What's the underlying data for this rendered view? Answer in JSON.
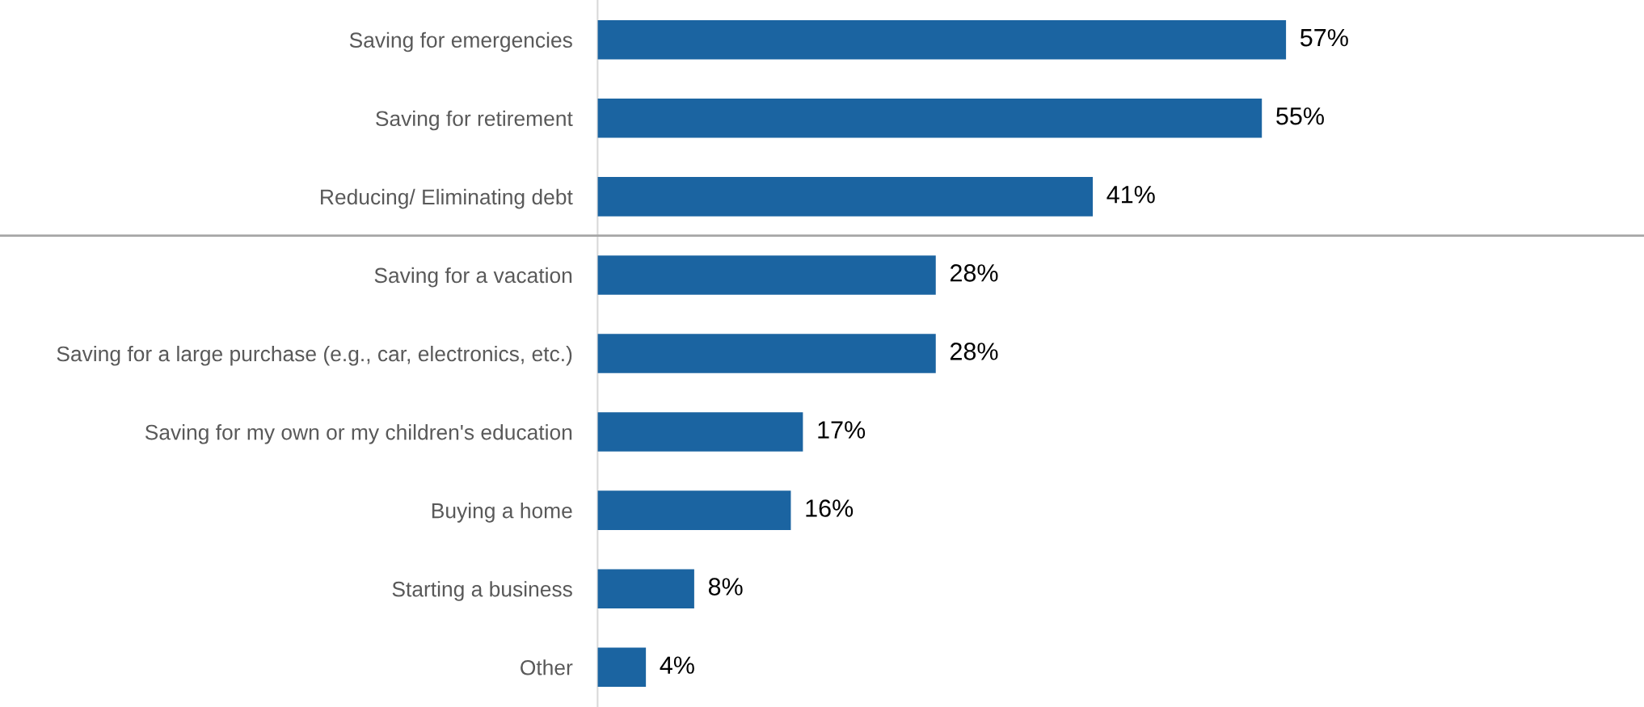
{
  "chart_data": {
    "type": "bar",
    "orientation": "horizontal",
    "categories": [
      "Saving for emergencies",
      "Saving for retirement",
      "Reducing/ Eliminating debt",
      "Saving for a vacation",
      "Saving for a large purchase (e.g., car, electronics, etc.)",
      "Saving for my own or my children's education",
      "Buying a home",
      "Starting a business",
      "Other"
    ],
    "values": [
      57,
      55,
      41,
      28,
      28,
      17,
      16,
      8,
      4
    ],
    "value_labels": [
      "57%",
      "55%",
      "41%",
      "28%",
      "28%",
      "17%",
      "16%",
      "8%",
      "4%"
    ],
    "color": "#1b64a1",
    "grid": false,
    "legend": false,
    "tick_labels": "y"
  }
}
